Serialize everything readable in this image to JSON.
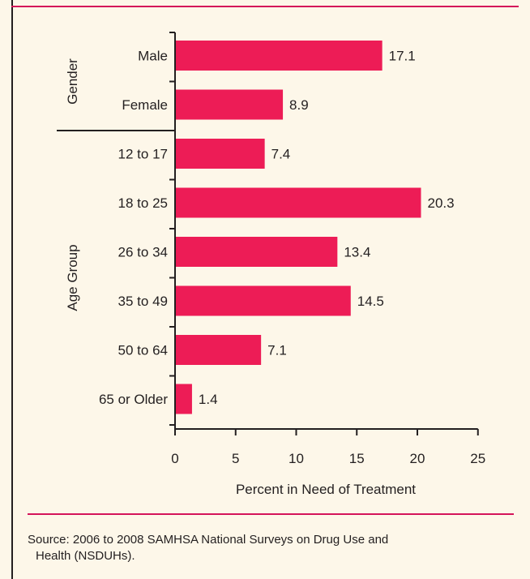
{
  "chart_data": {
    "type": "bar",
    "orientation": "horizontal",
    "groups": [
      {
        "name": "Gender",
        "categories": [
          "Male",
          "Female"
        ]
      },
      {
        "name": "Age Group",
        "categories": [
          "12 to 17",
          "18 to 25",
          "26 to 34",
          "35 to 49",
          "50 to 64",
          "65 or Older"
        ]
      }
    ],
    "categories": [
      "Male",
      "Female",
      "12 to 17",
      "18 to 25",
      "26 to 34",
      "35 to 49",
      "50 to 64",
      "65 or Older"
    ],
    "values": [
      17.1,
      8.9,
      7.4,
      20.3,
      13.4,
      14.5,
      7.1,
      1.4
    ],
    "value_labels": [
      "17.1",
      "8.9",
      "7.4",
      "20.3",
      "13.4",
      "14.5",
      "7.1",
      "1.4"
    ],
    "xlabel": "Percent in Need of Treatment",
    "xlim": [
      0,
      25
    ],
    "xticks": [
      "0",
      "5",
      "10",
      "15",
      "20",
      "25"
    ],
    "bar_color": "#ed1c56",
    "grid": false
  },
  "source": {
    "line1": "Source: 2006 to 2008 SAMHSA National Surveys on Drug Use and",
    "line2": "Health (NSDUHs)."
  },
  "colors": {
    "background": "#fdf7e9",
    "accent_rule": "#d4145a",
    "text": "#231f20"
  }
}
